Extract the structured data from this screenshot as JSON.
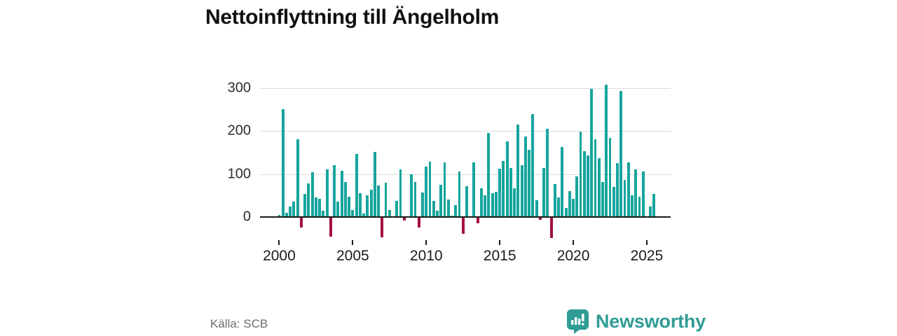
{
  "title": "Nettoinflyttning till Ängelholm",
  "source": "Källa: SCB",
  "logo": {
    "text": "Newsworthy",
    "icon": "newsworthy-speech-bubble-barchart-icon",
    "color": "#2f9c95"
  },
  "chart_data": {
    "type": "bar",
    "title": "Nettoinflyttning till Ängelholm",
    "xlabel": "",
    "ylabel": "",
    "frequency": "quarterly",
    "grid": "horizontal",
    "legend": "none",
    "ylim": [
      -60,
      320
    ],
    "y_ticks": [
      0,
      100,
      200,
      300
    ],
    "x_tick_labels": [
      "2000",
      "2005",
      "2010",
      "2015",
      "2020",
      "2025"
    ],
    "positive_color": "#16a59d",
    "negative_color": "#a50e3f",
    "categories": [
      "2000Q1",
      "2000Q2",
      "2000Q3",
      "2000Q4",
      "2001Q1",
      "2001Q2",
      "2001Q3",
      "2001Q4",
      "2002Q1",
      "2002Q2",
      "2002Q3",
      "2002Q4",
      "2003Q1",
      "2003Q2",
      "2003Q3",
      "2003Q4",
      "2004Q1",
      "2004Q2",
      "2004Q3",
      "2004Q4",
      "2005Q1",
      "2005Q2",
      "2005Q3",
      "2005Q4",
      "2006Q1",
      "2006Q2",
      "2006Q3",
      "2006Q4",
      "2007Q1",
      "2007Q2",
      "2007Q3",
      "2007Q4",
      "2008Q1",
      "2008Q2",
      "2008Q3",
      "2008Q4",
      "2009Q1",
      "2009Q2",
      "2009Q3",
      "2009Q4",
      "2010Q1",
      "2010Q2",
      "2010Q3",
      "2010Q4",
      "2011Q1",
      "2011Q2",
      "2011Q3",
      "2011Q4",
      "2012Q1",
      "2012Q2",
      "2012Q3",
      "2012Q4",
      "2013Q1",
      "2013Q2",
      "2013Q3",
      "2013Q4",
      "2014Q1",
      "2014Q2",
      "2014Q3",
      "2014Q4",
      "2015Q1",
      "2015Q2",
      "2015Q3",
      "2015Q4",
      "2016Q1",
      "2016Q2",
      "2016Q3",
      "2016Q4",
      "2017Q1",
      "2017Q2",
      "2017Q3",
      "2017Q4",
      "2018Q1",
      "2018Q2",
      "2018Q3",
      "2018Q4",
      "2019Q1",
      "2019Q2",
      "2019Q3",
      "2019Q4",
      "2020Q1",
      "2020Q2",
      "2020Q3",
      "2020Q4",
      "2021Q1",
      "2021Q2",
      "2021Q3",
      "2021Q4",
      "2022Q1",
      "2022Q2",
      "2022Q3",
      "2022Q4",
      "2023Q1",
      "2023Q2",
      "2023Q3",
      "2023Q4",
      "2024Q1",
      "2024Q2",
      "2024Q3",
      "2024Q4",
      "2025Q1",
      "2025Q2",
      "2025Q3"
    ],
    "values": [
      5,
      250,
      9,
      25,
      35,
      181,
      -22,
      54,
      78,
      104,
      46,
      43,
      15,
      110,
      -44,
      121,
      35,
      108,
      81,
      48,
      17,
      147,
      56,
      8,
      50,
      63,
      151,
      73,
      -46,
      79,
      17,
      2,
      38,
      110,
      -7,
      2,
      100,
      81,
      -23,
      57,
      117,
      128,
      37,
      15,
      75,
      127,
      40,
      4,
      27,
      105,
      -38,
      71,
      2,
      127,
      -13,
      66,
      51,
      195,
      55,
      59,
      112,
      130,
      176,
      114,
      67,
      215,
      121,
      188,
      157,
      239,
      39,
      -5,
      114,
      205,
      -48,
      76,
      46,
      162,
      21,
      60,
      43,
      94,
      199,
      153,
      144,
      298,
      181,
      136,
      81,
      308,
      184,
      70,
      125,
      293,
      86,
      127,
      51,
      110,
      47,
      106,
      2,
      25,
      54
    ]
  }
}
